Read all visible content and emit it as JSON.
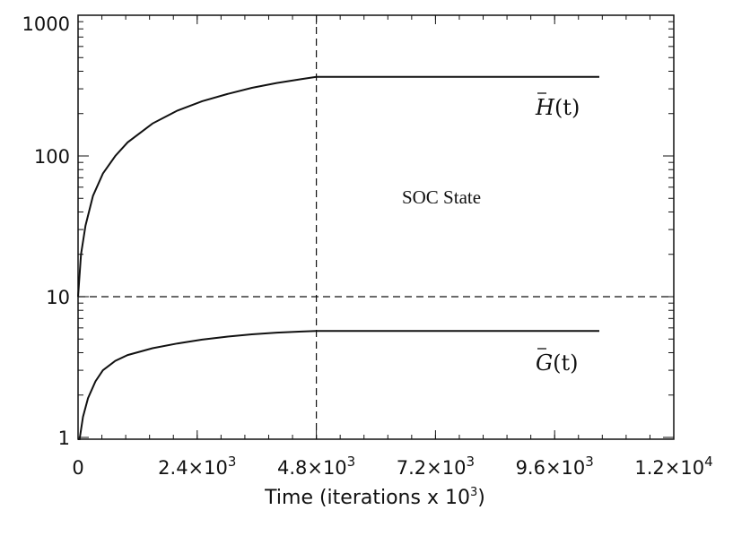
{
  "chart_data": {
    "type": "line",
    "xlabel": "Time (iterations x 10",
    "xlabel_sup": "3",
    "xlabel_end": ")",
    "xlim": [
      0,
      12000
    ],
    "ylim": [
      0.8,
      1000
    ],
    "y_scale": "log",
    "x_ticks": [
      {
        "value": 0,
        "base": "0",
        "exp": ""
      },
      {
        "value": 2400,
        "base": "2.4×10",
        "exp": "3"
      },
      {
        "value": 4800,
        "base": "4.8×10",
        "exp": "3"
      },
      {
        "value": 7200,
        "base": "7.2×10",
        "exp": "3"
      },
      {
        "value": 9600,
        "base": "9.6×10",
        "exp": "3"
      },
      {
        "value": 12000,
        "base": "1.2×10",
        "exp": "4"
      }
    ],
    "y_ticks": [
      {
        "value": 1,
        "label": "1"
      },
      {
        "value": 10,
        "label": "10"
      },
      {
        "value": 100,
        "label": "100"
      },
      {
        "value": 1000,
        "label": "1000"
      }
    ],
    "series": [
      {
        "label_main": "H",
        "label_arg": "(t)",
        "x": [
          0,
          60,
          150,
          300,
          500,
          750,
          1000,
          1500,
          2000,
          2500,
          3000,
          3500,
          4000,
          4500,
          4800,
          6000,
          7200,
          8400,
          9600,
          10500
        ],
        "values": [
          10,
          20,
          32,
          52,
          75,
          100,
          125,
          170,
          210,
          245,
          275,
          305,
          330,
          352,
          365,
          365,
          365,
          365,
          365,
          365
        ]
      },
      {
        "label_main": "G",
        "label_arg": "(t)",
        "x": [
          0,
          30,
          100,
          200,
          350,
          500,
          750,
          1000,
          1500,
          2000,
          2500,
          3000,
          3500,
          4000,
          4500,
          4800,
          6000,
          7200,
          8400,
          9600,
          10500
        ],
        "values": [
          0.8,
          0.95,
          1.4,
          1.9,
          2.5,
          3.0,
          3.5,
          3.85,
          4.3,
          4.65,
          4.95,
          5.2,
          5.4,
          5.55,
          5.65,
          5.7,
          5.7,
          5.7,
          5.7,
          5.7,
          5.7
        ]
      }
    ],
    "reference_lines": {
      "y": 10,
      "x": 4800
    },
    "annotation": "SOC State"
  }
}
